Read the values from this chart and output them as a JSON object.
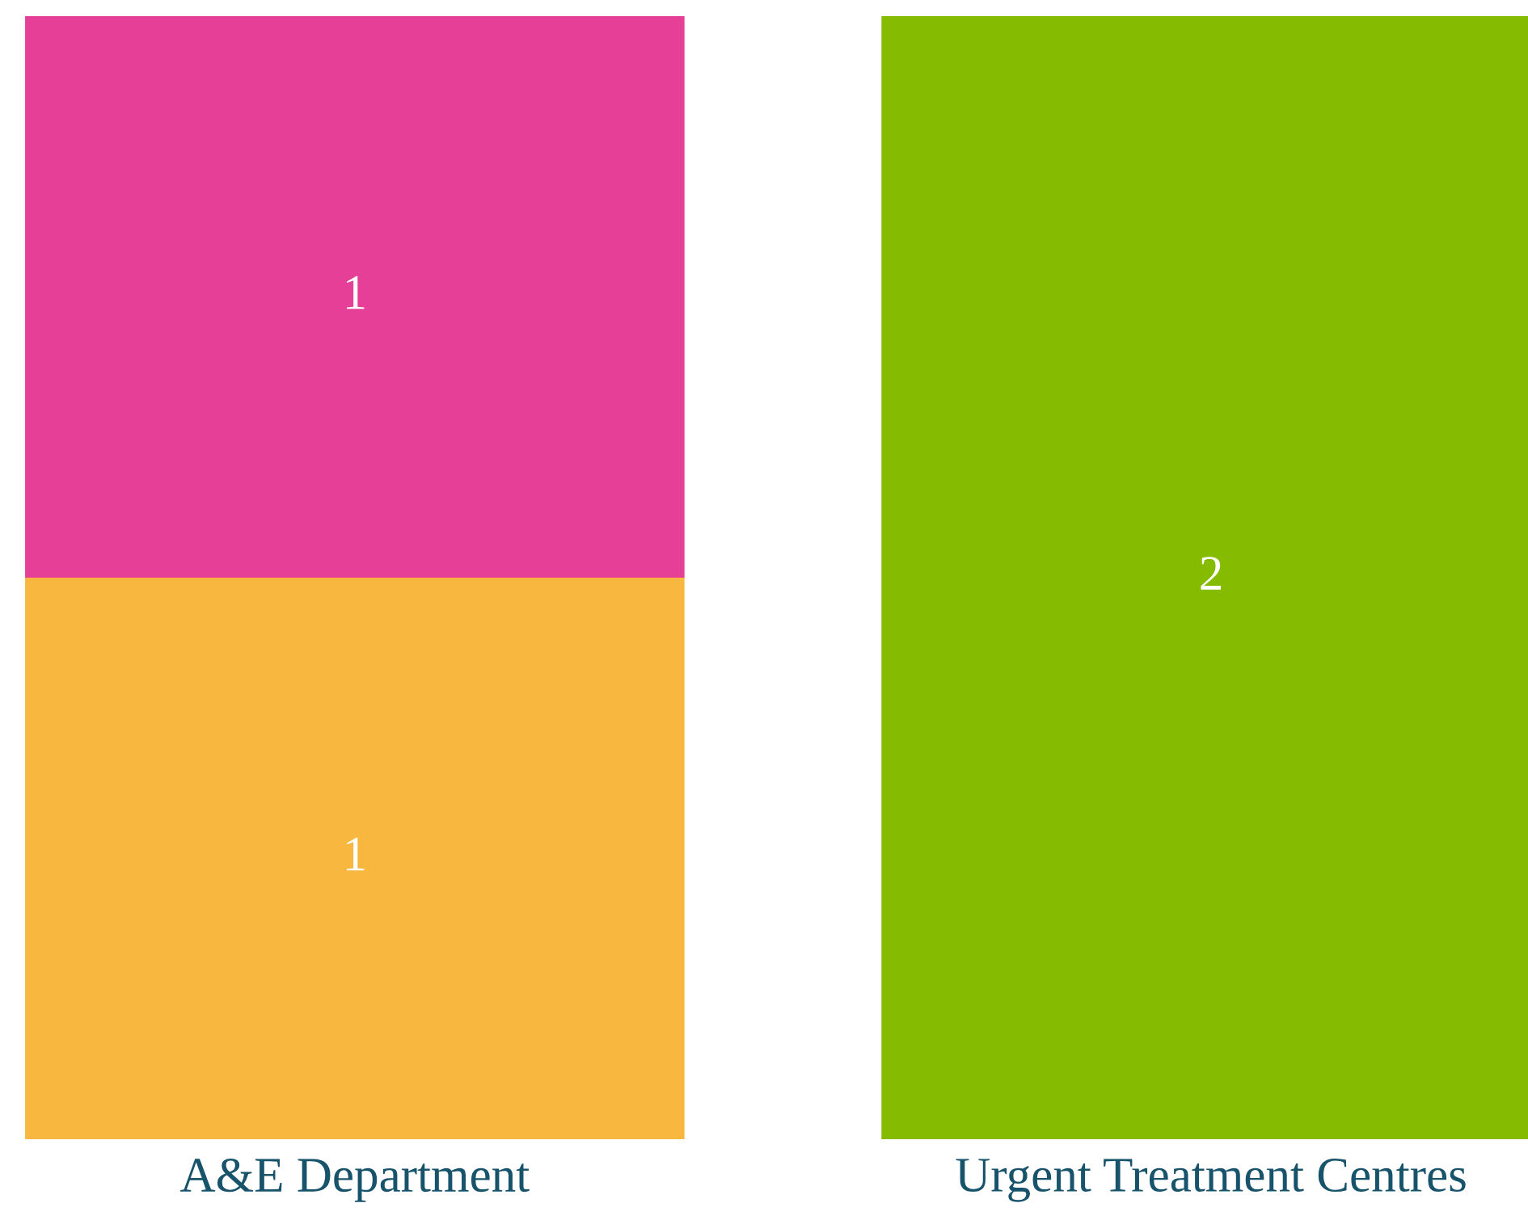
{
  "chart_data": {
    "type": "bar",
    "stacked": true,
    "data_labels": true,
    "categories": [
      "A&E Department",
      "Urgent Treatment Centres"
    ],
    "series": [
      {
        "color": "#f8b73e",
        "values": [
          1,
          null
        ]
      },
      {
        "color": "#e63f97",
        "values": [
          1,
          null
        ]
      },
      {
        "color": "#85bb00",
        "values": [
          null,
          2
        ]
      }
    ]
  }
}
